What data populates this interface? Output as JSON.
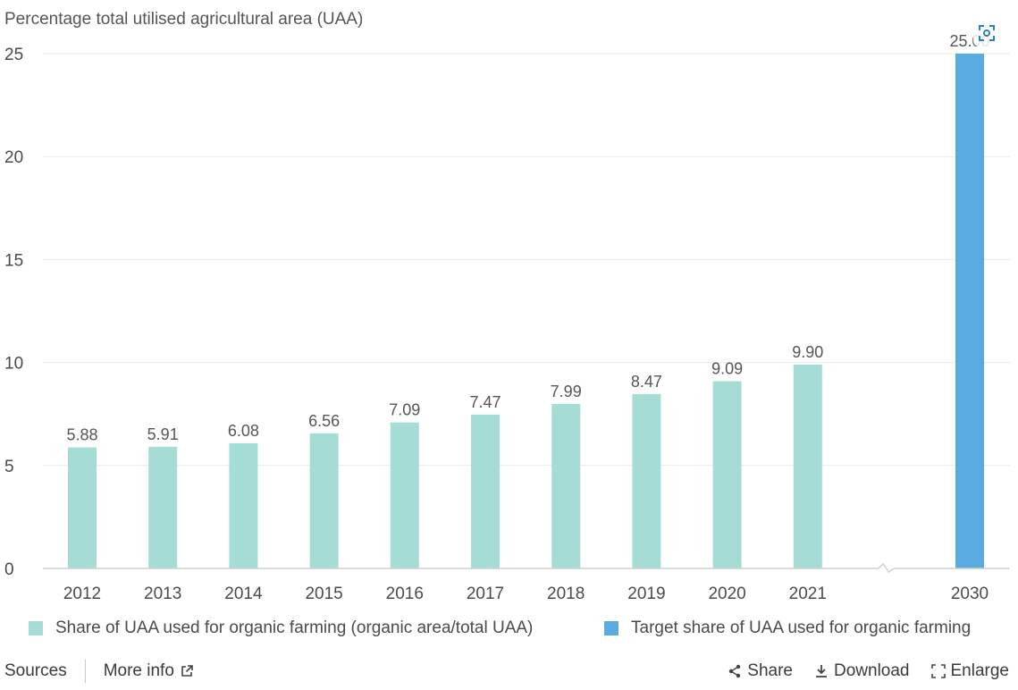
{
  "chart_data": {
    "type": "bar",
    "title": "",
    "ylabel": "Percentage total utilised agricultural area (UAA)",
    "xlabel": "",
    "ylim": [
      0,
      25
    ],
    "yticks": [
      0,
      5,
      10,
      15,
      20,
      25
    ],
    "categories": [
      "2012",
      "2013",
      "2014",
      "2015",
      "2016",
      "2017",
      "2018",
      "2019",
      "2020",
      "2021",
      "2030"
    ],
    "axis_break_after": "2021",
    "grid": true,
    "legend_position": "bottom",
    "series": [
      {
        "name": "Share of UAA used for organic farming (organic area/total UAA)",
        "color": "#a6dcd6",
        "values": [
          5.88,
          5.91,
          6.08,
          6.56,
          7.09,
          7.47,
          7.99,
          8.47,
          9.09,
          9.9,
          null
        ],
        "labels": [
          "5.88",
          "5.91",
          "6.08",
          "6.56",
          "7.09",
          "7.47",
          "7.99",
          "8.47",
          "9.09",
          "9.90",
          ""
        ]
      },
      {
        "name": "Target share of UAA used for organic farming",
        "color": "#5aace0",
        "values": [
          null,
          null,
          null,
          null,
          null,
          null,
          null,
          null,
          null,
          null,
          25.0
        ],
        "labels": [
          "",
          "",
          "",
          "",
          "",
          "",
          "",
          "",
          "",
          "",
          "25.00"
        ]
      }
    ]
  },
  "footer": {
    "sources_label": "Sources",
    "more_info_label": "More info",
    "share_label": "Share",
    "download_label": "Download",
    "enlarge_label": "Enlarge"
  },
  "icons": {
    "external_link": "external-link-icon",
    "share": "share-icon",
    "download": "download-icon",
    "enlarge": "enlarge-icon",
    "focus": "focus-icon"
  }
}
